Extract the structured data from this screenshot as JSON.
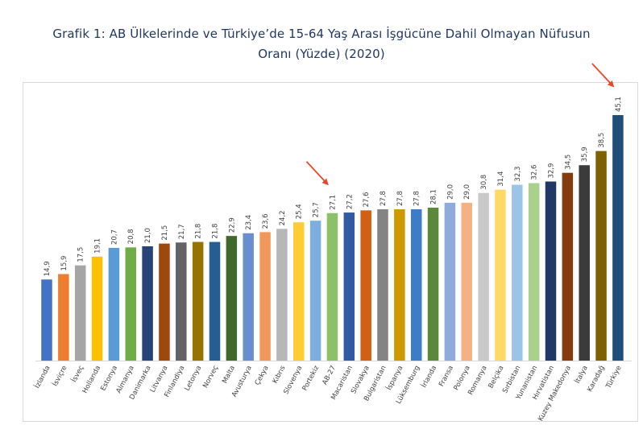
{
  "title_line1": "Grafik 1: AB Ülkelerinde ve Türkiye’de 15-64 Yaş Arası İşgücüne Dahil Olmayan Nüfusun",
  "title_line2": "Oranı (Yüzde) (2020)",
  "arrow_color": "#e8472b",
  "chart_data": {
    "type": "bar",
    "title": "Grafik 1: AB Ülkelerinde ve Türkiye’de 15-64 Yaş Arası İşgücüne Dahil Olmayan Nüfusun Oranı (Yüzde) (2020)",
    "categories": [
      "İzlanda",
      "İsviçre",
      "İsveç",
      "Hollanda",
      "Estonya",
      "Almanya",
      "Danimarka",
      "Litvanya",
      "Finlandiya",
      "Letonya",
      "Norveç",
      "Malta",
      "Avusturya",
      "Çekya",
      "Kıbrıs",
      "Slovenya",
      "Portekiz",
      "AB-27",
      "Macaristan",
      "Slovakya",
      "Bulgaristan",
      "İspanya",
      "Lüksemburg",
      "İrlanda",
      "Fransa",
      "Polonya",
      "Romanya",
      "Belçika",
      "Sırbistan",
      "Yunanistan",
      "Hırvatistan",
      "Kuzey Makedonya",
      "İtalya",
      "Karadağ",
      "Türkiye"
    ],
    "values": [
      14.9,
      15.9,
      17.5,
      19.1,
      20.7,
      20.8,
      21.0,
      21.5,
      21.7,
      21.8,
      21.8,
      22.9,
      23.4,
      23.6,
      24.2,
      25.4,
      25.7,
      27.1,
      27.2,
      27.6,
      27.8,
      27.8,
      27.8,
      28.1,
      29.0,
      29.0,
      30.8,
      31.4,
      32.3,
      32.6,
      32.9,
      34.5,
      35.9,
      38.5,
      45.1
    ],
    "value_labels": [
      "14,9",
      "15,9",
      "17,5",
      "19,1",
      "20,7",
      "20,8",
      "21,0",
      "21,5",
      "21,7",
      "21,8",
      "21,8",
      "22,9",
      "23,4",
      "23,6",
      "24,2",
      "25,4",
      "25,7",
      "27,1",
      "27,2",
      "27,6",
      "27,8",
      "27,8",
      "27,8",
      "28,1",
      "29,0",
      "29,0",
      "30,8",
      "31,4",
      "32,3",
      "32,6",
      "32,9",
      "34,5",
      "35,9",
      "38,5",
      "45,1"
    ],
    "colors": [
      "#4472c4",
      "#ed7d31",
      "#a5a5a5",
      "#ffc000",
      "#5b9bd5",
      "#70ad47",
      "#264478",
      "#9e480e",
      "#636363",
      "#997300",
      "#255e91",
      "#43682b",
      "#698ed0",
      "#f1975a",
      "#b7b7b7",
      "#ffcd33",
      "#7cafdd",
      "#8cc168",
      "#335aa1",
      "#d26012",
      "#848484",
      "#cc9a00",
      "#3c7dc4",
      "#5a8a39",
      "#8faadc",
      "#f4b183",
      "#c9c9c9",
      "#ffd966",
      "#9dc3e6",
      "#a9d18e",
      "#203864",
      "#843c0c",
      "#3b3b3b",
      "#7f6000",
      "#1f4e79"
    ],
    "ylim": [
      0,
      48
    ],
    "grid": false,
    "legend": "none",
    "highlighted": [
      "AB-27",
      "Türkiye"
    ]
  }
}
